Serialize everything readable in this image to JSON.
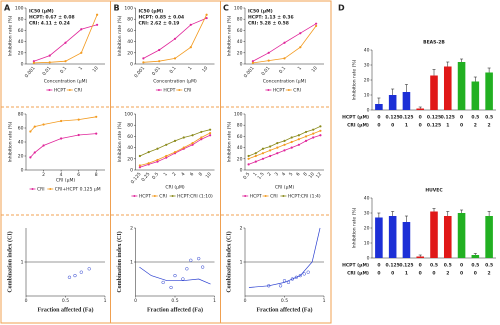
{
  "chart_data": [
    {
      "type": "line",
      "panel": "A",
      "annotations": [
        "IC50 (μM)",
        "HCPT:  0.67 ± 0.08",
        "CRI:    4.11 ± 0.24"
      ],
      "categories": [
        "0.001",
        "0.01",
        "0.1",
        "1",
        "10"
      ],
      "series": [
        {
          "name": "HCPT",
          "color": "#e0259a",
          "values": [
            5,
            15,
            38,
            62,
            70
          ]
        },
        {
          "name": "CRI",
          "color": "#f39a1e",
          "values": [
            2,
            3,
            5,
            20,
            88
          ]
        }
      ],
      "ylim": [
        0,
        100
      ],
      "yticks": [
        0,
        20,
        40,
        60,
        80,
        100
      ],
      "xlabel": "Concentration (μM)",
      "ylabel": "Inhibition rate (%)"
    },
    {
      "type": "line",
      "panel": "B",
      "annotations": [
        "IC50 (μM)",
        "HCPT:  0.85 ± 0.04",
        "CRI:    2.62 ± 0.19"
      ],
      "categories": [
        "0.001",
        "0.01",
        "0.1",
        "1",
        "10"
      ],
      "series": [
        {
          "name": "HCPT",
          "color": "#e0259a",
          "values": [
            10,
            25,
            45,
            70,
            82
          ]
        },
        {
          "name": "CRI",
          "color": "#f39a1e",
          "values": [
            3,
            5,
            10,
            30,
            88
          ]
        }
      ],
      "ylim": [
        0,
        100
      ],
      "yticks": [
        0,
        20,
        40,
        60,
        80,
        100
      ],
      "xlabel": "Concentration (μM)",
      "ylabel": "Inhibition rate (%)"
    },
    {
      "type": "line",
      "panel": "C",
      "annotations": [
        "IC50 (μM)",
        "HCPT:  1.13 ± 0.36",
        "CRI:    5.28 ± 0.58"
      ],
      "categories": [
        "0.001",
        "0.01",
        "0.1",
        "1",
        "10"
      ],
      "series": [
        {
          "name": "HCPT",
          "color": "#e0259a",
          "values": [
            5,
            20,
            38,
            55,
            72
          ]
        },
        {
          "name": "CRI",
          "color": "#f39a1e",
          "values": [
            2,
            6,
            10,
            30,
            68
          ]
        }
      ],
      "ylim": [
        0,
        100
      ],
      "yticks": [
        0,
        20,
        40,
        60,
        80,
        100
      ],
      "xlabel": "Concentration (μM)",
      "ylabel": "Inhibition rate (%)"
    },
    {
      "type": "line",
      "x": [
        0.5,
        1,
        2,
        4,
        6,
        8
      ],
      "series": [
        {
          "name": "CRI",
          "color": "#e0259a",
          "values": [
            18,
            25,
            35,
            45,
            50,
            52
          ]
        },
        {
          "name": "CRI+HCPT 0.125 μM",
          "color": "#f39a1e",
          "values": [
            55,
            62,
            65,
            70,
            72,
            76
          ]
        }
      ],
      "xlim": [
        0,
        9
      ],
      "xticks": [
        2,
        4,
        6,
        8
      ],
      "ylim": [
        0,
        80
      ],
      "yticks": [
        0,
        20,
        40,
        60,
        80
      ],
      "xlabel": "CRI (μM)",
      "ylabel": "Inhibition rate (%)"
    },
    {
      "type": "line",
      "categories": [
        "0.125",
        "0.25",
        "0.5",
        "1",
        "2",
        "4",
        "6",
        "8",
        "10"
      ],
      "series": [
        {
          "name": "HCPT",
          "color": "#e0259a",
          "values": [
            5,
            10,
            15,
            22,
            30,
            38,
            45,
            55,
            62
          ]
        },
        {
          "name": "CRI",
          "color": "#f39a1e",
          "values": [
            8,
            12,
            18,
            25,
            32,
            40,
            48,
            58,
            66
          ]
        },
        {
          "name": "HCPT:CRI (1:10)",
          "color": "#8a8a1a",
          "values": [
            25,
            32,
            38,
            45,
            52,
            58,
            62,
            68,
            72
          ]
        }
      ],
      "ylim": [
        0,
        100
      ],
      "yticks": [
        0,
        20,
        40,
        60,
        80,
        100
      ],
      "xlabel": "CRI (μM)",
      "ylabel": "Inhibition rate (%)"
    },
    {
      "type": "line",
      "categories": [
        "0.5",
        "1",
        "1.5",
        "2",
        "3",
        "4",
        "5",
        "6",
        "8",
        "10",
        "12"
      ],
      "series": [
        {
          "name": "HCPT",
          "color": "#e0259a",
          "values": [
            10,
            15,
            20,
            25,
            30,
            35,
            40,
            45,
            52,
            58,
            62
          ]
        },
        {
          "name": "CRI",
          "color": "#f39a1e",
          "values": [
            20,
            25,
            30,
            35,
            40,
            45,
            50,
            55,
            60,
            65,
            70
          ]
        },
        {
          "name": "HCPT:CRI (1:4)",
          "color": "#8a8a1a",
          "values": [
            25,
            30,
            38,
            42,
            48,
            52,
            58,
            62,
            68,
            72,
            78
          ]
        }
      ],
      "ylim": [
        0,
        100
      ],
      "yticks": [
        0,
        20,
        40,
        60,
        80,
        100
      ],
      "xlabel": "CRI (μM)",
      "ylabel": "Inhibition rate (%)"
    },
    {
      "type": "scatter",
      "series": [
        {
          "color": "#2a3fd0",
          "x": [
            0.55,
            0.62,
            0.7,
            0.8
          ],
          "values": [
            0.55,
            0.6,
            0.7,
            0.8
          ]
        }
      ],
      "xlim": [
        0,
        1
      ],
      "xticks": [
        0,
        0.5,
        1
      ],
      "ylim": [
        0,
        2
      ],
      "yticks": [
        1
      ],
      "reference_line": 1,
      "xlabel": "Fraction affected (Fa)",
      "ylabel": "Combination index (CI)"
    },
    {
      "type": "scatter",
      "series": [
        {
          "color": "#2a3fd0",
          "x": [
            0.35,
            0.45,
            0.5,
            0.6,
            0.65,
            0.7,
            0.8,
            0.85
          ],
          "values": [
            0.4,
            0.25,
            0.6,
            0.5,
            0.8,
            1.05,
            1.1,
            0.85
          ]
        },
        {
          "color": "#2a3fd0",
          "line": true,
          "x": [
            0.05,
            0.2,
            0.4,
            0.6,
            0.8,
            0.95
          ],
          "values": [
            0.85,
            0.6,
            0.45,
            0.45,
            0.5,
            0.35
          ]
        }
      ],
      "xlim": [
        0,
        1
      ],
      "xticks": [
        0,
        0.5,
        1
      ],
      "ylim": [
        0,
        2
      ],
      "yticks": [
        1,
        2
      ],
      "reference_line": 1,
      "xlabel": "Fraction affected (Fa)",
      "ylabel": "Combination index (CI)"
    },
    {
      "type": "scatter",
      "series": [
        {
          "color": "#2a3fd0",
          "x": [
            0.3,
            0.45,
            0.5,
            0.55,
            0.6,
            0.65,
            0.7,
            0.75,
            0.8
          ],
          "values": [
            0.3,
            0.3,
            0.45,
            0.4,
            0.5,
            0.55,
            0.6,
            0.65,
            0.7
          ]
        },
        {
          "color": "#2a3fd0",
          "line": true,
          "x": [
            0.05,
            0.3,
            0.5,
            0.7,
            0.85,
            0.95
          ],
          "values": [
            0.25,
            0.3,
            0.4,
            0.6,
            1.0,
            2.0
          ]
        }
      ],
      "xlim": [
        0,
        1
      ],
      "xticks": [
        0,
        0.5,
        1
      ],
      "ylim": [
        0,
        2
      ],
      "yticks": [
        1,
        2
      ],
      "reference_line": 1,
      "xlabel": "Fraction affected (Fa)",
      "ylabel": "Combination index (CI)"
    },
    {
      "type": "bar",
      "panel": "D",
      "title": "BEAS-2B",
      "values": [
        4,
        10,
        12,
        1,
        23,
        29,
        32,
        19,
        25
      ],
      "errors": [
        4,
        4,
        5,
        1,
        4,
        3,
        2,
        3,
        3
      ],
      "colors": [
        "#1c2fd6",
        "#1c2fd6",
        "#1c2fd6",
        "#e01818",
        "#e01818",
        "#e01818",
        "#22b022",
        "#22b022",
        "#22b022"
      ],
      "ylim": [
        0,
        40
      ],
      "yticks": [
        0,
        10,
        20,
        30,
        40
      ],
      "ylabel": "Inhibition rate (%)",
      "rows": [
        {
          "label": "HCPT (μM)",
          "values": [
            "0",
            "0.125",
            "0.125",
            "0",
            "0.125",
            "0.125",
            "0",
            "0.5",
            "0.5"
          ]
        },
        {
          "label": "CRI (μM)",
          "values": [
            "0",
            "0",
            "1",
            "0",
            "0.125",
            "1",
            "0",
            "2",
            "2"
          ]
        }
      ]
    },
    {
      "type": "bar",
      "title": "HUVEC",
      "values": [
        27,
        28,
        24,
        1,
        31,
        28,
        30,
        2,
        28
      ],
      "errors": [
        3,
        3,
        4,
        1,
        2,
        3,
        2,
        1,
        3
      ],
      "colors": [
        "#1c2fd6",
        "#1c2fd6",
        "#1c2fd6",
        "#e01818",
        "#e01818",
        "#e01818",
        "#22b022",
        "#22b022",
        "#22b022"
      ],
      "ylim": [
        0,
        40
      ],
      "yticks": [
        0,
        10,
        20,
        30,
        40
      ],
      "ylabel": "Inhibition rate (%)",
      "rows": [
        {
          "label": "HCPT (μM)",
          "values": [
            "0",
            "0.125",
            "0.125",
            "0",
            "0.5",
            "0.5",
            "0",
            "0.5",
            "0.5"
          ]
        },
        {
          "label": "CRI (μM)",
          "values": [
            "0",
            "0",
            "1",
            "0",
            "0",
            "2",
            "0",
            "0",
            "2"
          ]
        }
      ]
    }
  ]
}
